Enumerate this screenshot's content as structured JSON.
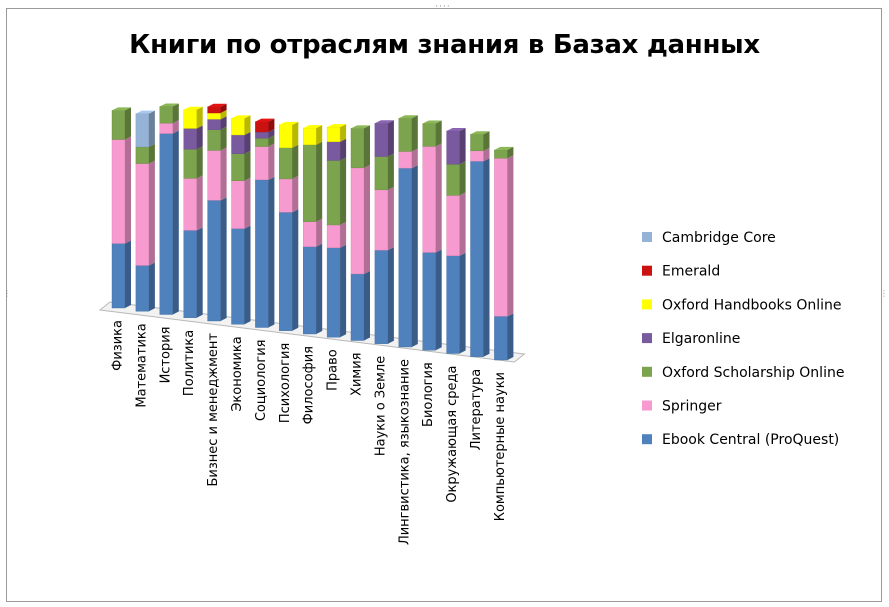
{
  "handles": {
    "top": "····",
    "side": "⋮"
  },
  "chart_data": {
    "type": "bar",
    "stacked": true,
    "three_d": true,
    "title": "Книги по отраслям знания в Базах данных",
    "legend_position": "right",
    "categories": [
      "Физика",
      "Математика",
      "История",
      "Политика",
      "Бизнес и менеджмент",
      "Экономика",
      "Социология",
      "Психология",
      "Философия",
      "Право",
      "Химия",
      "Науки о Земле",
      "Лингвистика, языкознание",
      "Биология",
      "Окружающая среда",
      "Литература",
      "Компьютерные науки"
    ],
    "series": [
      {
        "name": "Ebook Central (ProQuest)",
        "color": "#4f81bd",
        "values": [
          31,
          22,
          87,
          42,
          58,
          46,
          71,
          57,
          42,
          43,
          32,
          45,
          86,
          47,
          47,
          94,
          21
        ]
      },
      {
        "name": "Springer",
        "color": "#f79ad0",
        "values": [
          50,
          49,
          5,
          25,
          24,
          23,
          16,
          16,
          12,
          11,
          51,
          29,
          8,
          51,
          29,
          5,
          76
        ]
      },
      {
        "name": "Oxford Scholarship Online",
        "color": "#7ca34d",
        "values": [
          14,
          8,
          8,
          14,
          10,
          13,
          4,
          15,
          37,
          31,
          19,
          16,
          16,
          11,
          15,
          8,
          4
        ]
      },
      {
        "name": "Elgaronline",
        "color": "#7a5a9f",
        "values": [
          0,
          0,
          0,
          10,
          5,
          9,
          3,
          0,
          0,
          9,
          0,
          16,
          0,
          0,
          16,
          0,
          0
        ]
      },
      {
        "name": "Oxford Handbooks Online",
        "color": "#ffff00",
        "values": [
          0,
          0,
          0,
          9,
          3,
          8,
          0,
          11,
          8,
          7,
          0,
          0,
          0,
          0,
          0,
          0,
          0
        ]
      },
      {
        "name": "Emerald",
        "color": "#cc1111",
        "values": [
          0,
          0,
          0,
          0,
          3,
          0,
          5,
          0,
          0,
          0,
          0,
          0,
          0,
          0,
          0,
          0,
          0
        ]
      },
      {
        "name": "Cambridge Core",
        "color": "#95b3d7",
        "values": [
          0,
          16,
          0,
          0,
          0,
          0,
          0,
          0,
          0,
          0,
          0,
          0,
          0,
          0,
          0,
          0,
          0
        ]
      }
    ],
    "legend_order": [
      "Cambridge Core",
      "Emerald",
      "Oxford Handbooks Online",
      "Elgaronline",
      "Oxford Scholarship Online",
      "Springer",
      "Ebook Central (ProQuest)"
    ]
  }
}
